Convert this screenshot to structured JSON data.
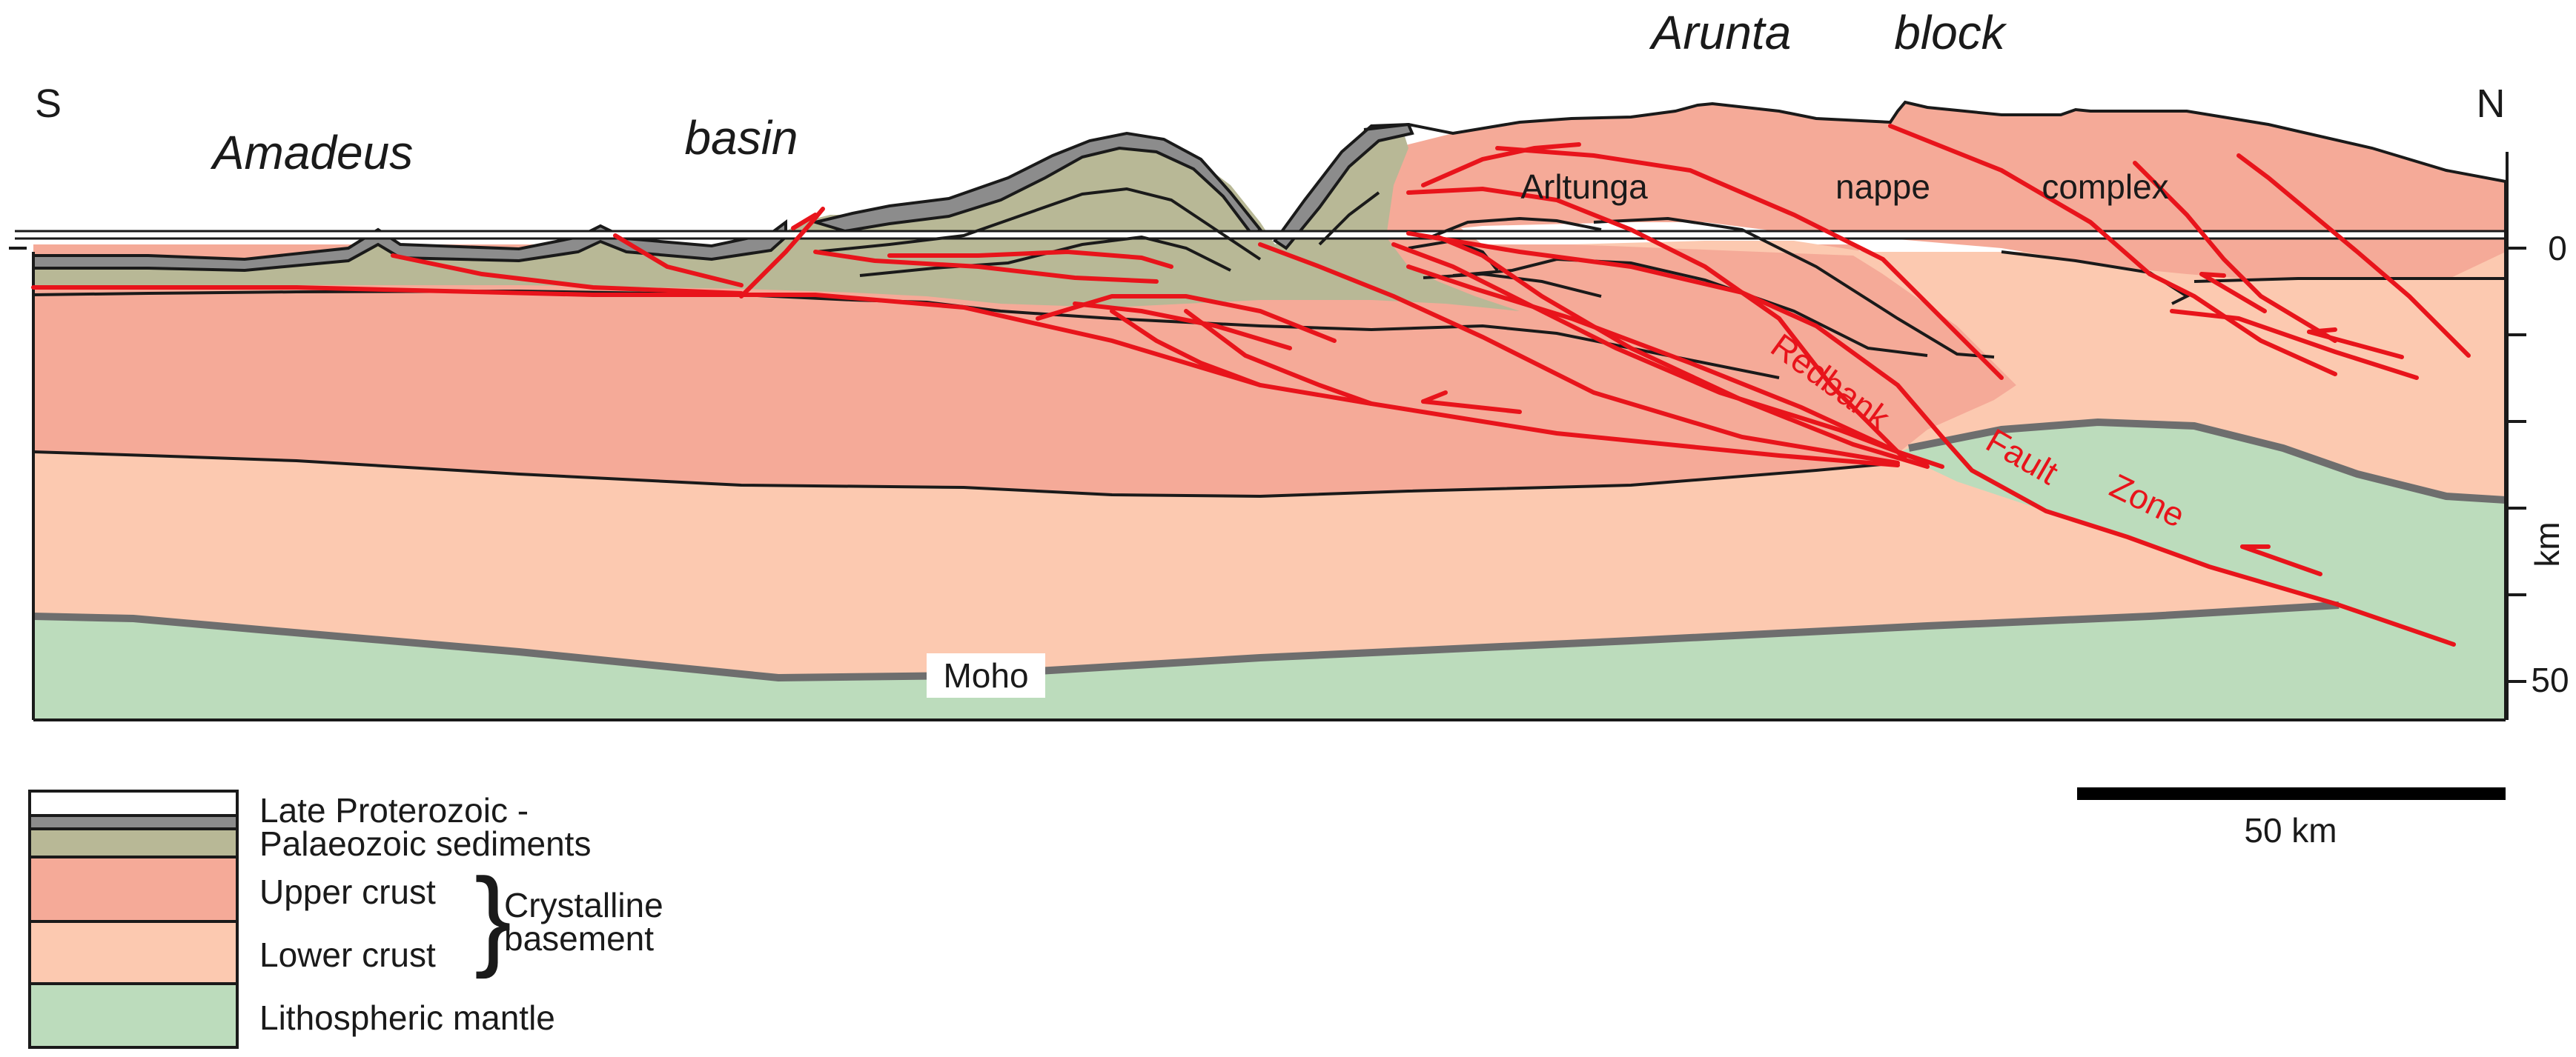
{
  "cross_section": {
    "side_left": "S",
    "side_right": "N",
    "region_labels": {
      "amadeus": "Amadeus",
      "basin": "basin",
      "arunta": "Arunta",
      "block": "block"
    },
    "nappe_labels": {
      "arltunga": "Arltunga",
      "nappe": "nappe",
      "complex": "complex"
    },
    "fault_labels": {
      "redbank": "Redbank",
      "fault": "Fault",
      "zone": "Zone"
    },
    "moho_label": "Moho",
    "depth_axis": {
      "ticks": [
        "0",
        "50"
      ],
      "unit": "km"
    },
    "scale_bar": "50 km"
  },
  "legend": {
    "sediments_line1": "Late Proterozoic -",
    "sediments_line2": "Palaeozoic sediments",
    "upper_crust": "Upper crust",
    "lower_crust": "Lower crust",
    "crystalline_line1": "Crystalline",
    "crystalline_line2": "basement",
    "mantle": "Lithospheric mantle"
  },
  "colors": {
    "sediment_olive": "#b8b896",
    "sediment_dark": "#8c8c8c",
    "upper_crust": "#f5aa98",
    "lower_crust": "#fcc9b0",
    "mantle": "#bcdcbc",
    "fault_red": "#e8141b",
    "moho_gray": "#6e6e6e"
  }
}
